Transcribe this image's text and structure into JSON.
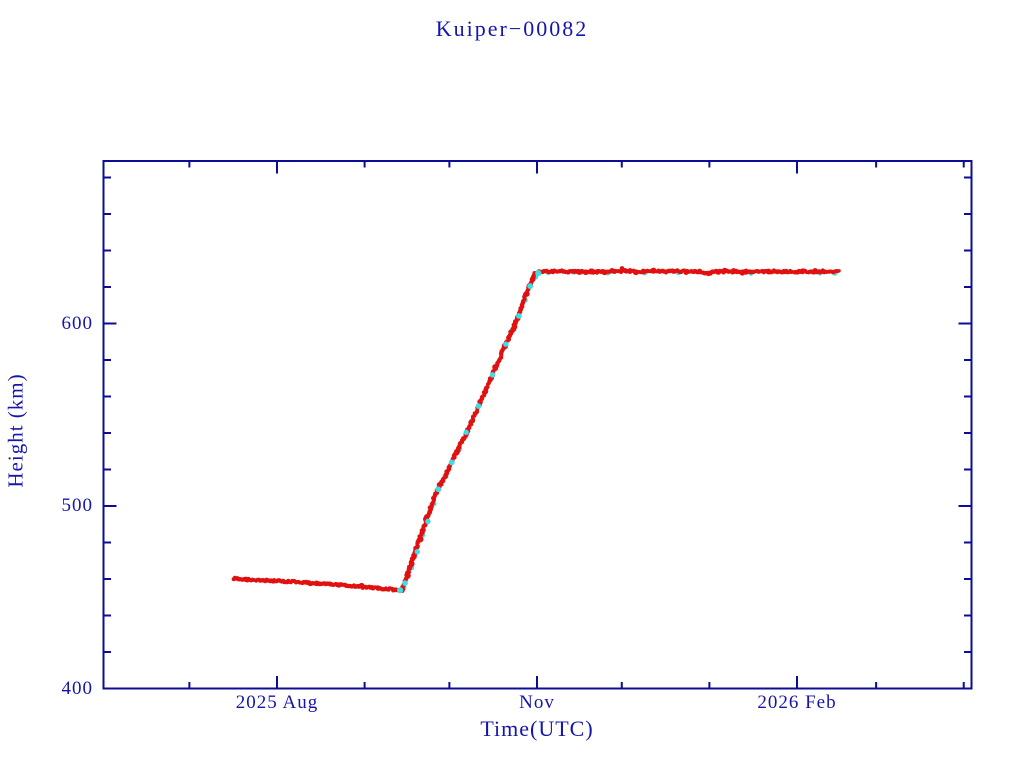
{
  "title": "Kuiper−00082",
  "colors": {
    "axis": "#0c0c96",
    "text": "#1515ae",
    "red_points": "#e21010",
    "cyan_markers": "#3edde4",
    "connecting_line": "#232399",
    "background": "#ffffff"
  },
  "chart_data": {
    "type": "scatter",
    "title": "Kuiper−00082",
    "xlabel": "Time(UTC)",
    "ylabel": "Height (km)",
    "grid": false,
    "legend": "none",
    "x_axis": {
      "unit": "days since 2025-06-01",
      "epoch": "2025-06-01",
      "range": [
        0,
        307
      ],
      "major_ticks": [
        {
          "day": 61,
          "label": "2025 Aug"
        },
        {
          "day": 153,
          "label": "Nov"
        },
        {
          "day": 245,
          "label": "2026 Feb"
        }
      ],
      "minor_ticks_days": [
        30,
        92,
        122,
        183,
        214,
        273,
        304
      ]
    },
    "y_axis": {
      "range": [
        400,
        689
      ],
      "major_ticks": [
        {
          "km": 400,
          "label": "400"
        },
        {
          "km": 500,
          "label": "500"
        },
        {
          "km": 600,
          "label": "600"
        }
      ],
      "minor_ticks_km": [
        420,
        440,
        460,
        480,
        520,
        540,
        560,
        580,
        620,
        640,
        660,
        680
      ]
    },
    "series": [
      {
        "name": "height-red-points",
        "style": "dense-dots",
        "color_key": "red_points",
        "points": [
          [
            45.7,
            460.2
          ],
          [
            50,
            459.8
          ],
          [
            55,
            459.4
          ],
          [
            60,
            459.1
          ],
          [
            65,
            458.7
          ],
          [
            70,
            458.2
          ],
          [
            75,
            457.7
          ],
          [
            80,
            457.1
          ],
          [
            85,
            456.5
          ],
          [
            90,
            455.8
          ],
          [
            95,
            455.2
          ],
          [
            100,
            454.5
          ],
          [
            103,
            454.0
          ],
          [
            105.2,
            453.6
          ],
          [
            107,
            462
          ],
          [
            109,
            471
          ],
          [
            111,
            480
          ],
          [
            113,
            489
          ],
          [
            115,
            497
          ],
          [
            117.2,
            506.8
          ],
          [
            119,
            512
          ],
          [
            121,
            518
          ],
          [
            123,
            525
          ],
          [
            125,
            531
          ],
          [
            127,
            537
          ],
          [
            128.9,
            543
          ],
          [
            131,
            550
          ],
          [
            133,
            557
          ],
          [
            135,
            564
          ],
          [
            137,
            571
          ],
          [
            139.5,
            579.7
          ],
          [
            141.5,
            587
          ],
          [
            143.5,
            594
          ],
          [
            145.5,
            601
          ],
          [
            147,
            607
          ],
          [
            149.1,
            616.4
          ],
          [
            150.5,
            621
          ],
          [
            151.8,
            625.5
          ],
          [
            152.6,
            628.0
          ],
          [
            153.2,
            628.4
          ],
          [
            156,
            628.5
          ],
          [
            160,
            628.4
          ],
          [
            164,
            628.5
          ],
          [
            168,
            628.4
          ],
          [
            172,
            628.5
          ],
          [
            176,
            628.4
          ],
          [
            180,
            628.5
          ],
          [
            182.5,
            628.6
          ],
          [
            183.3,
            629.9
          ],
          [
            184.2,
            628.8
          ],
          [
            188,
            628.5
          ],
          [
            192,
            628.4
          ],
          [
            196,
            628.5
          ],
          [
            200,
            628.4
          ],
          [
            204,
            628.5
          ],
          [
            208,
            628.4
          ],
          [
            211,
            628.5
          ],
          [
            213.6,
            627.4
          ],
          [
            215.5,
            628.4
          ],
          [
            219,
            628.5
          ],
          [
            223,
            628.4
          ],
          [
            227,
            628.5
          ],
          [
            231,
            628.4
          ],
          [
            235,
            628.5
          ],
          [
            239,
            628.4
          ],
          [
            243,
            628.5
          ],
          [
            247,
            628.4
          ],
          [
            251,
            628.5
          ],
          [
            255,
            628.4
          ],
          [
            259.9,
            628.5
          ]
        ]
      },
      {
        "name": "height-cyan-markers",
        "style": "markers",
        "color_key": "cyan_markers",
        "points": [
          [
            104.8,
            453.4
          ],
          [
            105.7,
            455.2
          ],
          [
            106.3,
            457.5
          ],
          [
            108.5,
            466
          ],
          [
            110.5,
            475
          ],
          [
            112.5,
            484
          ],
          [
            114.5,
            492
          ],
          [
            116.3,
            501
          ],
          [
            118.2,
            509
          ],
          [
            120.5,
            516
          ],
          [
            122.8,
            524
          ],
          [
            125.2,
            531.5
          ],
          [
            127.8,
            540
          ],
          [
            130,
            546.5
          ],
          [
            132.5,
            555
          ],
          [
            134.8,
            563
          ],
          [
            137.2,
            572
          ],
          [
            139,
            577.5
          ],
          [
            141.8,
            588.5
          ],
          [
            144.2,
            596.5
          ],
          [
            146.5,
            604.5
          ],
          [
            148.5,
            613
          ],
          [
            150.8,
            620.5
          ],
          [
            152.2,
            626
          ],
          [
            153.4,
            628.0
          ],
          [
            157,
            628.2
          ],
          [
            166,
            628.2
          ],
          [
            178,
            628.2
          ],
          [
            191,
            628.2
          ],
          [
            203,
            628.2
          ],
          [
            217,
            628.2
          ],
          [
            229,
            628.2
          ],
          [
            241,
            628.2
          ],
          [
            253,
            628.2
          ],
          [
            258.5,
            628.2
          ]
        ]
      }
    ]
  }
}
